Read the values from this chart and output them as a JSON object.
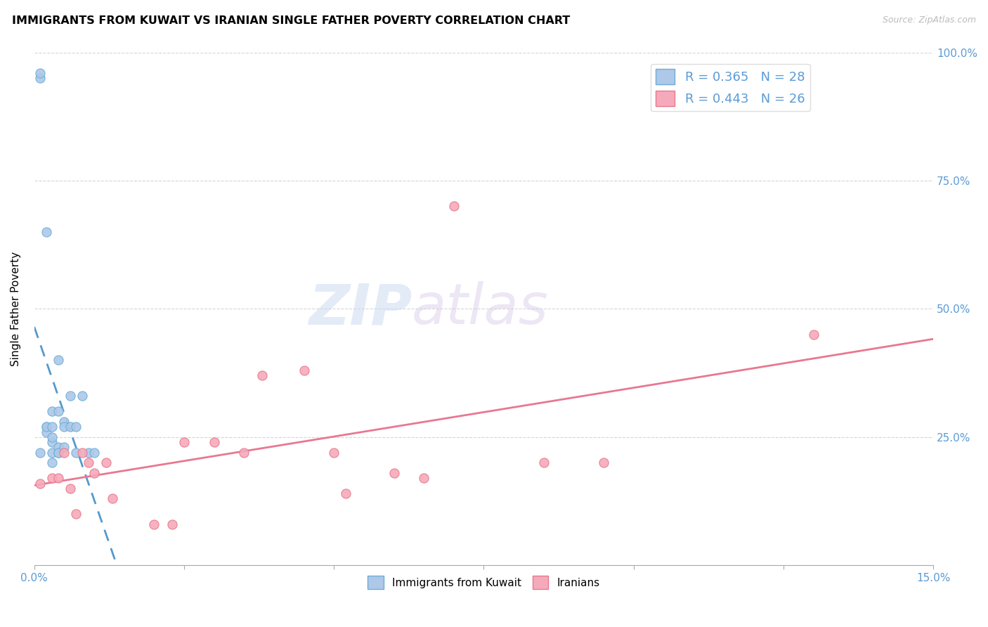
{
  "title": "IMMIGRANTS FROM KUWAIT VS IRANIAN SINGLE FATHER POVERTY CORRELATION CHART",
  "source": "Source: ZipAtlas.com",
  "ylabel": "Single Father Poverty",
  "xlim": [
    0,
    0.15
  ],
  "ylim": [
    0,
    1.0
  ],
  "xticks": [
    0.0,
    0.025,
    0.05,
    0.075,
    0.1,
    0.125,
    0.15
  ],
  "xtick_labels": [
    "0.0%",
    "",
    "",
    "",
    "",
    "",
    "15.0%"
  ],
  "ytick_labels_right": [
    "",
    "25.0%",
    "50.0%",
    "75.0%",
    "100.0%"
  ],
  "yticks_right": [
    0.0,
    0.25,
    0.5,
    0.75,
    1.0
  ],
  "kuwait_R": 0.365,
  "kuwait_N": 28,
  "iran_R": 0.443,
  "iran_N": 26,
  "kuwait_color": "#adc8e8",
  "iran_color": "#f5aabb",
  "kuwait_edge_color": "#6baed6",
  "iran_edge_color": "#e8788a",
  "kuwait_line_color": "#5599cc",
  "iran_line_color": "#e87890",
  "background_color": "#ffffff",
  "watermark_zip": "ZIP",
  "watermark_atlas": "atlas",
  "kuwait_x": [
    0.001,
    0.001,
    0.001,
    0.002,
    0.002,
    0.002,
    0.002,
    0.003,
    0.003,
    0.003,
    0.003,
    0.003,
    0.003,
    0.004,
    0.004,
    0.004,
    0.004,
    0.004,
    0.005,
    0.005,
    0.005,
    0.006,
    0.006,
    0.007,
    0.007,
    0.008,
    0.009,
    0.01
  ],
  "kuwait_y": [
    0.95,
    0.96,
    0.22,
    0.27,
    0.26,
    0.27,
    0.65,
    0.22,
    0.24,
    0.25,
    0.3,
    0.27,
    0.2,
    0.22,
    0.23,
    0.4,
    0.22,
    0.3,
    0.23,
    0.28,
    0.27,
    0.27,
    0.33,
    0.27,
    0.22,
    0.33,
    0.22,
    0.22
  ],
  "iran_x": [
    0.001,
    0.003,
    0.004,
    0.005,
    0.006,
    0.007,
    0.008,
    0.009,
    0.01,
    0.012,
    0.013,
    0.02,
    0.023,
    0.025,
    0.03,
    0.035,
    0.038,
    0.045,
    0.05,
    0.052,
    0.06,
    0.065,
    0.07,
    0.085,
    0.095,
    0.13
  ],
  "iran_y": [
    0.16,
    0.17,
    0.17,
    0.22,
    0.15,
    0.1,
    0.22,
    0.2,
    0.18,
    0.2,
    0.13,
    0.08,
    0.08,
    0.24,
    0.24,
    0.22,
    0.37,
    0.38,
    0.22,
    0.14,
    0.18,
    0.17,
    0.7,
    0.2,
    0.2,
    0.45
  ],
  "kuwait_trend_x": [
    0.0,
    0.015
  ],
  "iran_trend_x": [
    0.0,
    0.15
  ]
}
